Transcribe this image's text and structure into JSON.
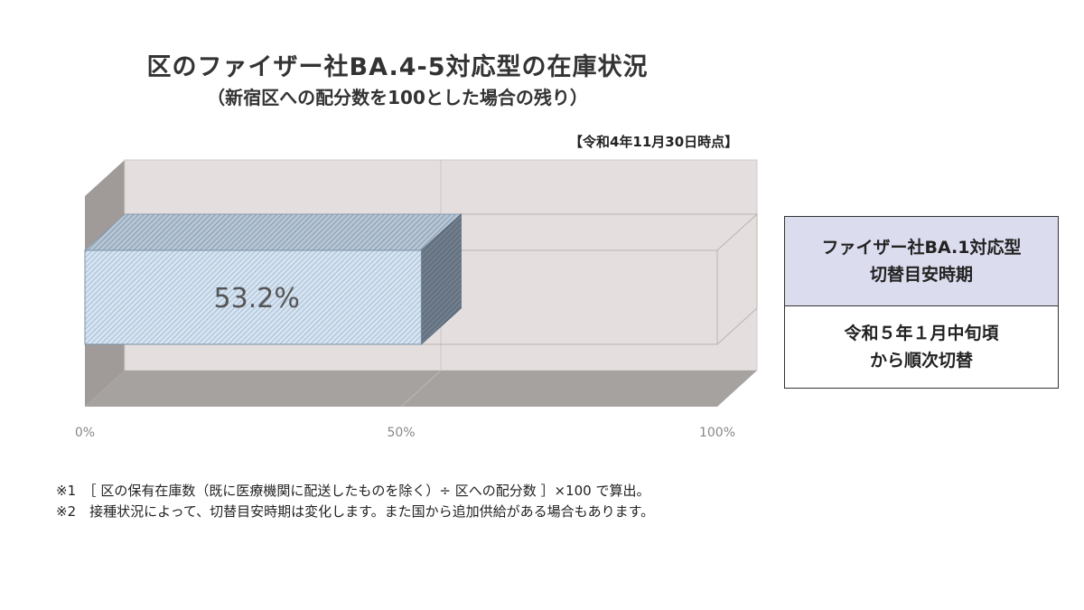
{
  "chart_data": {
    "type": "bar",
    "title": "区のファイザー社BA.4-5対応型の在庫状況",
    "subtitle": "（新宿区への配分数を100とした場合の残り）",
    "as_of": "【令和4年11月30日時点】",
    "orientation": "horizontal",
    "style": "3d",
    "xlim": [
      0,
      100
    ],
    "x_ticks": [
      0,
      50,
      100
    ],
    "x_tick_labels": [
      "0%",
      "50%",
      "100%"
    ],
    "values": [
      53.2
    ],
    "data_labels": [
      "53.2%"
    ],
    "grid": true,
    "colors": {
      "bar": "#d6e4f2",
      "bar_hatch": "#7e9ab5",
      "floor": "#a9a5a3",
      "wall": "#e3dedd",
      "back_wall": "#9a9593"
    }
  },
  "info_box": {
    "header_line1": "ファイザー社BA.1対応型",
    "header_line2": "切替目安時期",
    "body_line1": "令和５年１月中旬頃",
    "body_line2": "から順次切替"
  },
  "notes": [
    "※1　［ 区の保有在庫数（既に医療機関に配送したものを除く）÷ 区への配分数 ］×100 で算出。",
    "※2　接種状況によって、切替目安時期は変化します。また国から追加供給がある場合もあります。"
  ]
}
